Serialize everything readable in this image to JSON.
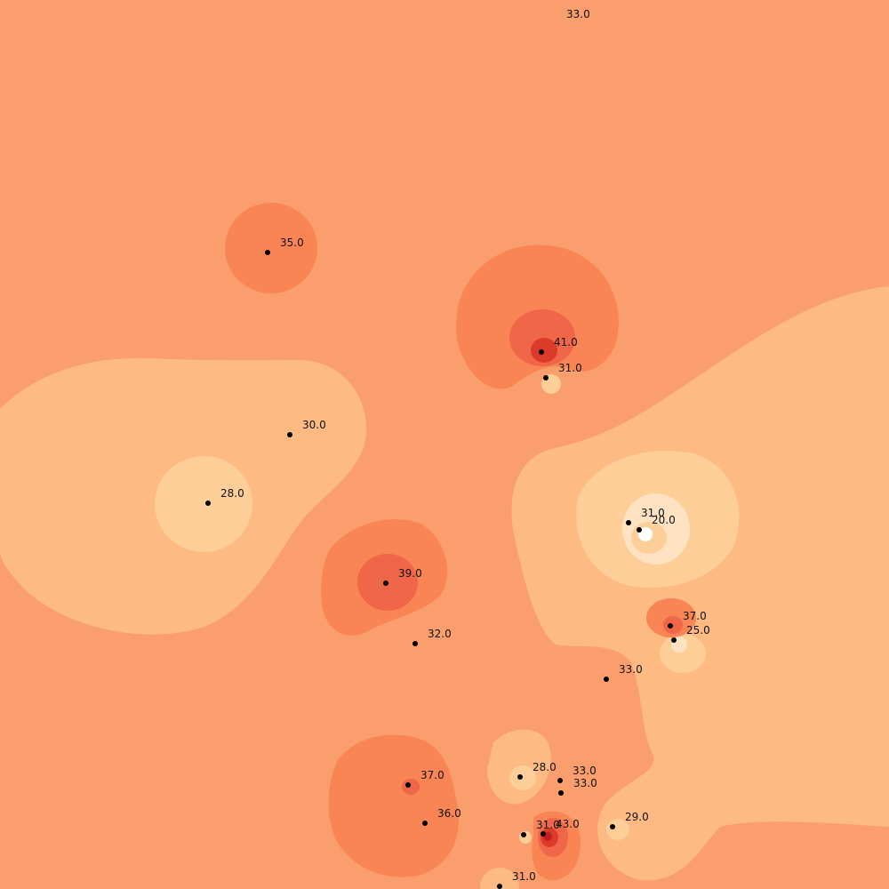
{
  "chart_data": {
    "type": "heatmap",
    "title": "",
    "colors": {
      "background": "#fb9e6d",
      "band_low_1": "#fdba82",
      "band_low_2": "#fdce97",
      "band_low_3": "#fee2c2",
      "band_low_4": "#ffffff",
      "band_high_1": "#f98454",
      "band_high_2": "#ef6648",
      "band_high_3": "#dc3b2c",
      "band_high_4": "#c31e1f",
      "point": "#000000"
    },
    "points": [
      {
        "id": "p1",
        "label": "33.0",
        "value": 33.0
      },
      {
        "id": "p2",
        "label": "35.0",
        "value": 35.0
      },
      {
        "id": "p3",
        "label": "41.0",
        "value": 41.0
      },
      {
        "id": "p4",
        "label": "31.0",
        "value": 31.0
      },
      {
        "id": "p5",
        "label": "30.0",
        "value": 30.0
      },
      {
        "id": "p6",
        "label": "28.0",
        "value": 28.0
      },
      {
        "id": "p7",
        "label": "31.0",
        "value": 31.0
      },
      {
        "id": "p8",
        "label": "20.0",
        "value": 20.0
      },
      {
        "id": "p9",
        "label": "39.0",
        "value": 39.0
      },
      {
        "id": "p10",
        "label": "37.0",
        "value": 37.0
      },
      {
        "id": "p11",
        "label": "25.0",
        "value": 25.0
      },
      {
        "id": "p12",
        "label": "32.0",
        "value": 32.0
      },
      {
        "id": "p13",
        "label": "33.0",
        "value": 33.0
      },
      {
        "id": "p14",
        "label": "37.0",
        "value": 37.0
      },
      {
        "id": "p15",
        "label": "28.0",
        "value": 28.0
      },
      {
        "id": "p16",
        "label": "33.0",
        "value": 33.0
      },
      {
        "id": "p17",
        "label": "33.0",
        "value": 33.0
      },
      {
        "id": "p18",
        "label": "36.0",
        "value": 36.0
      },
      {
        "id": "p19",
        "label": "29.0",
        "value": 29.0
      },
      {
        "id": "p20",
        "label": "31.0",
        "value": 31.0
      },
      {
        "id": "p21",
        "label": "43.0",
        "value": 43.0
      },
      {
        "id": "p22",
        "label": "31.0",
        "value": 31.0
      }
    ]
  }
}
